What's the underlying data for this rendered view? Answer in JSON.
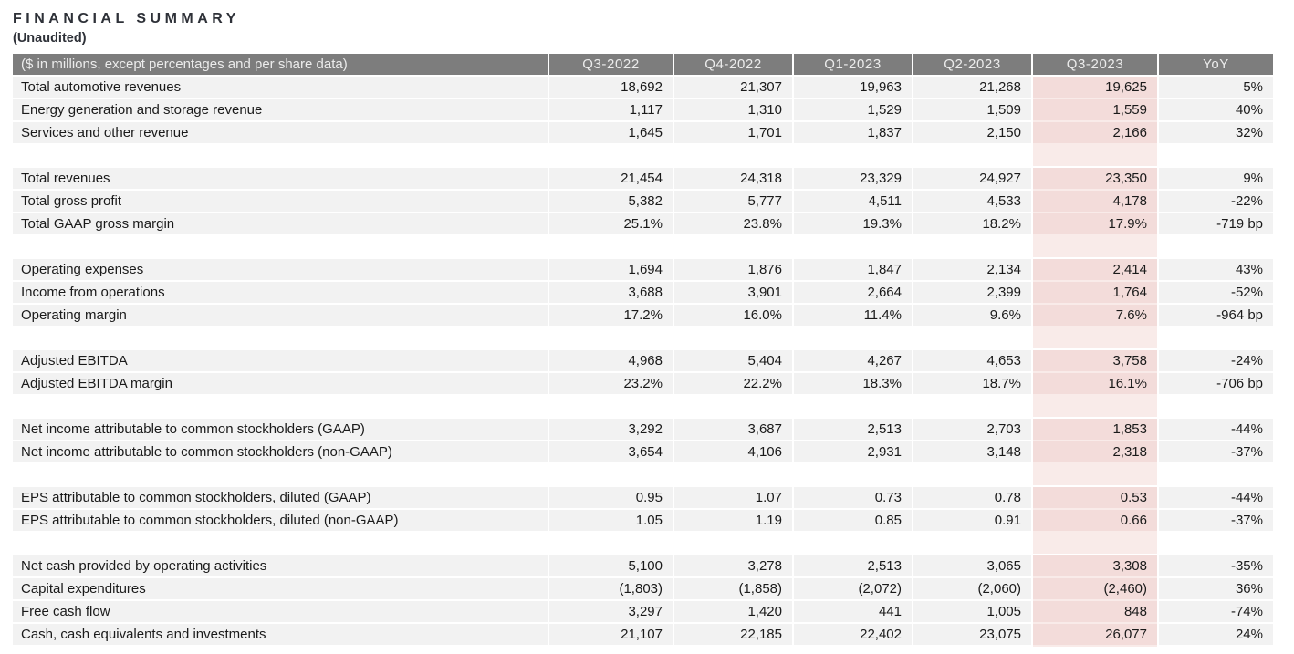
{
  "page": {
    "title": "FINANCIAL SUMMARY",
    "subtitle": "(Unaudited)"
  },
  "colors": {
    "page_bg": "#ffffff",
    "header_bg": "#7d7d7d",
    "header_text": "#ececec",
    "row_bg": "#f2f2f2",
    "text": "#1a1a1a",
    "title_color": "#2e3138",
    "highlight_cell_bg": "#f3dcda",
    "highlight_spacer_bg": "#f9ebe9"
  },
  "table": {
    "header": {
      "label": "($ in millions, except percentages and per share data)",
      "columns": [
        "Q3-2022",
        "Q4-2022",
        "Q1-2023",
        "Q2-2023",
        "Q3-2023",
        "YoY"
      ],
      "highlight_column": "Q3-2023"
    },
    "sections": [
      {
        "rows": [
          {
            "label": "Total automotive revenues",
            "values": [
              "18,692",
              "21,307",
              "19,963",
              "21,268",
              "19,625",
              "5%"
            ]
          },
          {
            "label": "Energy generation and storage revenue",
            "values": [
              "1,117",
              "1,310",
              "1,529",
              "1,509",
              "1,559",
              "40%"
            ]
          },
          {
            "label": "Services and other revenue",
            "values": [
              "1,645",
              "1,701",
              "1,837",
              "2,150",
              "2,166",
              "32%"
            ]
          }
        ]
      },
      {
        "rows": [
          {
            "label": "Total revenues",
            "values": [
              "21,454",
              "24,318",
              "23,329",
              "24,927",
              "23,350",
              "9%"
            ]
          },
          {
            "label": "Total gross profit",
            "values": [
              "5,382",
              "5,777",
              "4,511",
              "4,533",
              "4,178",
              "-22%"
            ]
          },
          {
            "label": "Total GAAP gross margin",
            "values": [
              "25.1%",
              "23.8%",
              "19.3%",
              "18.2%",
              "17.9%",
              "-719 bp"
            ]
          }
        ]
      },
      {
        "rows": [
          {
            "label": "Operating expenses",
            "values": [
              "1,694",
              "1,876",
              "1,847",
              "2,134",
              "2,414",
              "43%"
            ]
          },
          {
            "label": "Income from operations",
            "values": [
              "3,688",
              "3,901",
              "2,664",
              "2,399",
              "1,764",
              "-52%"
            ]
          },
          {
            "label": "Operating margin",
            "values": [
              "17.2%",
              "16.0%",
              "11.4%",
              "9.6%",
              "7.6%",
              "-964 bp"
            ]
          }
        ]
      },
      {
        "rows": [
          {
            "label": "Adjusted EBITDA",
            "values": [
              "4,968",
              "5,404",
              "4,267",
              "4,653",
              "3,758",
              "-24%"
            ]
          },
          {
            "label": "Adjusted EBITDA margin",
            "values": [
              "23.2%",
              "22.2%",
              "18.3%",
              "18.7%",
              "16.1%",
              "-706 bp"
            ]
          }
        ]
      },
      {
        "rows": [
          {
            "label": "Net income attributable to common stockholders (GAAP)",
            "values": [
              "3,292",
              "3,687",
              "2,513",
              "2,703",
              "1,853",
              "-44%"
            ]
          },
          {
            "label": "Net income attributable to common stockholders (non-GAAP)",
            "values": [
              "3,654",
              "4,106",
              "2,931",
              "3,148",
              "2,318",
              "-37%"
            ]
          }
        ]
      },
      {
        "rows": [
          {
            "label": "EPS attributable to common stockholders, diluted (GAAP)",
            "values": [
              "0.95",
              "1.07",
              "0.73",
              "0.78",
              "0.53",
              "-44%"
            ]
          },
          {
            "label": "EPS attributable to common stockholders, diluted (non-GAAP)",
            "values": [
              "1.05",
              "1.19",
              "0.85",
              "0.91",
              "0.66",
              "-37%"
            ]
          }
        ]
      },
      {
        "rows": [
          {
            "label": "Net cash provided by operating activities",
            "values": [
              "5,100",
              "3,278",
              "2,513",
              "3,065",
              "3,308",
              "-35%"
            ]
          },
          {
            "label": "Capital expenditures",
            "values": [
              "(1,803)",
              "(1,858)",
              "(2,072)",
              "(2,060)",
              "(2,460)",
              "36%"
            ]
          },
          {
            "label": "Free cash flow",
            "values": [
              "3,297",
              "1,420",
              "441",
              "1,005",
              "848",
              "-74%"
            ]
          },
          {
            "label": "Cash, cash equivalents and investments",
            "values": [
              "21,107",
              "22,185",
              "22,402",
              "23,075",
              "26,077",
              "24%"
            ]
          }
        ]
      }
    ]
  }
}
